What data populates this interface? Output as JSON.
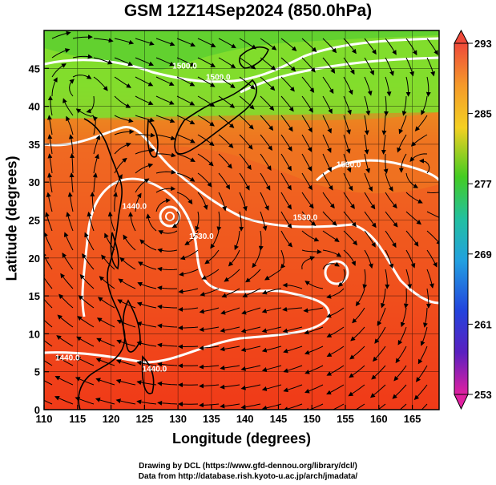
{
  "title": "GSM 12Z14Sep2024 (850.0hPa)",
  "xlabel": "Longitude (degrees)",
  "ylabel": "Latitude  (degrees)",
  "credits": {
    "line1": "Drawing by DCL (https://www.gfd-dennou.org/library/dcl/)",
    "line2": "Data from http://database.rish.kyoto-u.ac.jp/arch/jmadata/"
  },
  "map": {
    "lon_range": [
      110,
      169
    ],
    "lat_range": [
      0,
      50
    ],
    "lon_ticks": [
      110,
      115,
      120,
      125,
      130,
      135,
      140,
      145,
      150,
      155,
      160,
      165
    ],
    "lat_ticks": [
      0,
      5,
      10,
      15,
      20,
      25,
      30,
      35,
      40,
      45
    ],
    "lon_tick_labels": [
      "110",
      "115",
      "120",
      "125",
      "130",
      "135",
      "140",
      "145",
      "150",
      "155",
      "160",
      "165"
    ],
    "lat_tick_labels": [
      "0",
      "5",
      "10",
      "15",
      "20",
      "25",
      "30",
      "35",
      "40",
      "45"
    ],
    "contour_labels": [
      {
        "text": "1440.0",
        "lon": 113.5,
        "lat": 6.5
      },
      {
        "text": "1440.0",
        "lon": 123.5,
        "lat": 26.5
      },
      {
        "text": "1500.0",
        "lon": 131.0,
        "lat": 45.0
      },
      {
        "text": "1500.0",
        "lon": 136.0,
        "lat": 43.5
      },
      {
        "text": "1530.0",
        "lon": 133.5,
        "lat": 22.5
      },
      {
        "text": "1530.0",
        "lon": 149.0,
        "lat": 25.0
      },
      {
        "text": "1530.0",
        "lon": 155.5,
        "lat": 32.0
      },
      {
        "text": "1440.0",
        "lon": 126.5,
        "lat": 5.0
      }
    ]
  },
  "colorbar": {
    "min": 253,
    "max": 293,
    "tick_labels": [
      "293",
      "285",
      "277",
      "269",
      "261",
      "253"
    ],
    "tick_values": [
      293,
      285,
      277,
      269,
      261,
      253
    ]
  }
}
